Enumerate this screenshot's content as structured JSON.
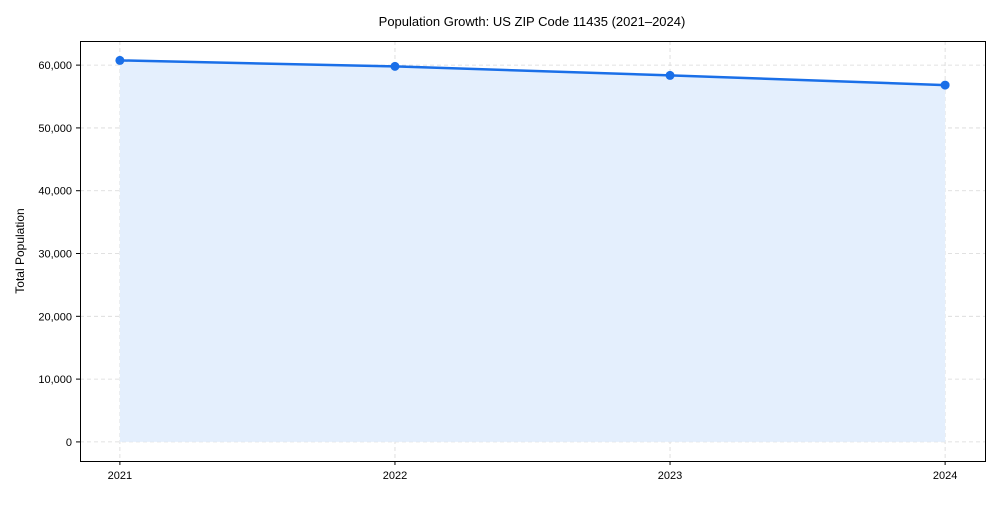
{
  "chart_data": {
    "type": "area",
    "title": "Population Growth: US ZIP Code 11435 (2021–2024)",
    "xlabel": "",
    "ylabel": "Total Population",
    "x": [
      2021,
      2022,
      2023,
      2024
    ],
    "x_tick_labels": [
      "2021",
      "2022",
      "2023",
      "2024"
    ],
    "series": [
      {
        "name": "Total Population",
        "values": [
          60750,
          59800,
          58360,
          56820
        ],
        "color": "#1a6fe8",
        "fill": "#e4effd"
      }
    ],
    "y_ticks": [
      0,
      10000,
      20000,
      30000,
      40000,
      50000,
      60000
    ],
    "y_tick_labels": [
      "0",
      "10,000",
      "20,000",
      "30,000",
      "40,000",
      "50,000",
      "60,000"
    ],
    "xlim": [
      2020.855,
      2024.145
    ],
    "ylim": [
      -3040,
      63840
    ],
    "grid": true,
    "grid_style": "dashed"
  }
}
